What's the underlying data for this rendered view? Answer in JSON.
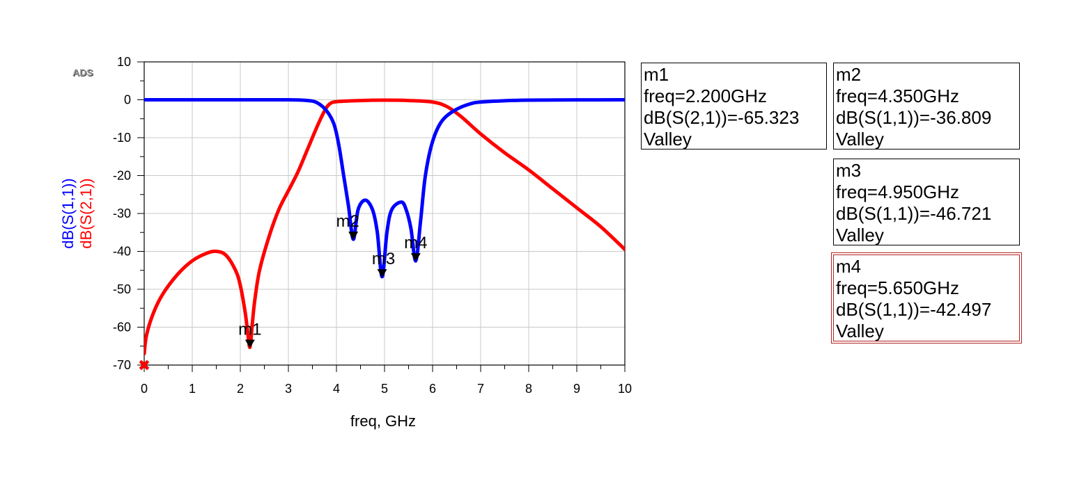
{
  "logo_text": "ADS",
  "chart_data": {
    "type": "line",
    "xlabel": "freq, GHz",
    "ylabels": [
      "dB(S(1,1))",
      "dB(S(2,1))"
    ],
    "xlim": [
      0,
      10
    ],
    "ylim": [
      -70,
      10
    ],
    "xticks": [
      0,
      1,
      2,
      3,
      4,
      5,
      6,
      7,
      8,
      9,
      10
    ],
    "yticks": [
      10,
      0,
      -10,
      -20,
      -30,
      -40,
      -50,
      -60,
      -70
    ],
    "grid": true,
    "colors": {
      "s11": "#0000ff",
      "s21": "#ff0000",
      "marker": "#000000"
    },
    "series": [
      {
        "name": "dB(S(1,1))",
        "color": "#0000ff",
        "x": [
          0,
          1,
          2,
          3,
          3.4,
          3.6,
          3.8,
          3.95,
          4.05,
          4.15,
          4.25,
          4.35,
          4.45,
          4.6,
          4.75,
          4.85,
          4.95,
          5.05,
          5.15,
          5.35,
          5.45,
          5.55,
          5.65,
          5.75,
          5.85,
          6.0,
          6.2,
          6.5,
          6.8,
          7.0,
          7.5,
          8,
          9,
          10
        ],
        "y": [
          0,
          0,
          0,
          0,
          -0.2,
          -0.8,
          -3,
          -6.5,
          -12,
          -20,
          -28,
          -36.8,
          -29,
          -26.5,
          -29,
          -35,
          -46.7,
          -35,
          -29,
          -27,
          -29,
          -34,
          -42.5,
          -32,
          -20,
          -11,
          -5.5,
          -2.5,
          -1.0,
          -0.6,
          -0.25,
          -0.1,
          -0.03,
          0
        ]
      },
      {
        "name": "dB(S(2,1))",
        "color": "#ff0000",
        "x": [
          0,
          0.05,
          0.2,
          0.4,
          0.7,
          1.0,
          1.3,
          1.5,
          1.7,
          1.9,
          2.0,
          2.1,
          2.15,
          2.2,
          2.25,
          2.3,
          2.4,
          2.6,
          2.8,
          3.0,
          3.2,
          3.4,
          3.6,
          3.75,
          3.85,
          4.0,
          4.5,
          5.0,
          5.5,
          6.0,
          6.3,
          6.6,
          7.0,
          7.5,
          8.0,
          8.5,
          9.0,
          9.5,
          10.0
        ],
        "y": [
          -67,
          -62,
          -56,
          -51,
          -46,
          -42.5,
          -40.5,
          -40,
          -41,
          -45,
          -49,
          -56,
          -61,
          -65.3,
          -59,
          -53,
          -45,
          -36,
          -29,
          -24,
          -19,
          -13,
          -7,
          -3,
          -1.2,
          -0.5,
          -0.2,
          -0.1,
          -0.2,
          -0.6,
          -1.8,
          -4.5,
          -9,
          -14,
          -18.5,
          -23.5,
          -28.5,
          -33.5,
          -39.5
        ]
      }
    ],
    "markers": [
      {
        "name": "m1",
        "freq": 2.2,
        "value": -65.323,
        "lines": [
          "m1",
          "freq=2.200GHz",
          "dB(S(2,1))=-65.323",
          "Valley"
        ]
      },
      {
        "name": "m2",
        "freq": 4.35,
        "value": -36.809,
        "lines": [
          "m2",
          "freq=4.350GHz",
          "dB(S(1,1))=-36.809",
          "Valley"
        ]
      },
      {
        "name": "m3",
        "freq": 4.95,
        "value": -46.721,
        "lines": [
          "m3",
          "freq=4.950GHz",
          "dB(S(1,1))=-46.721",
          "Valley"
        ]
      },
      {
        "name": "m4",
        "freq": 5.65,
        "value": -42.497,
        "lines": [
          "m4",
          "freq=5.650GHz",
          "dB(S(1,1))=-42.497",
          "Valley"
        ]
      }
    ],
    "origin_marker": "✖"
  }
}
